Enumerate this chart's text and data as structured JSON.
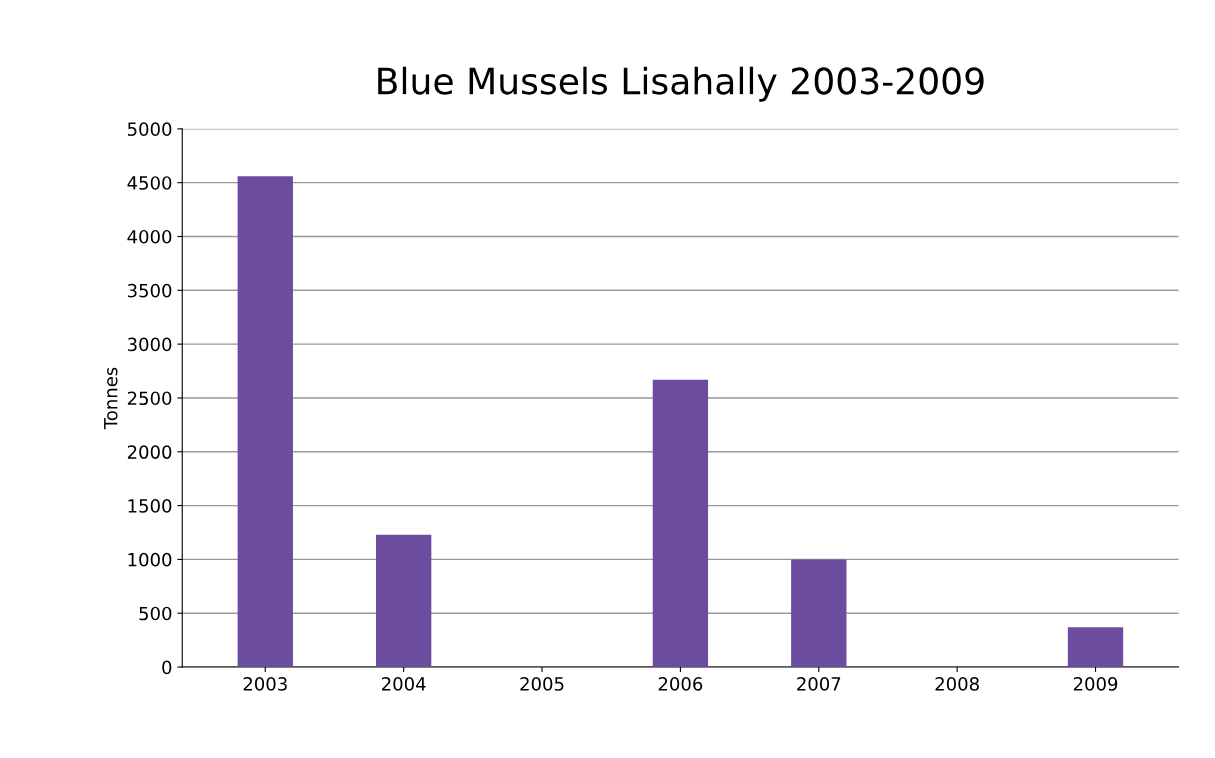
{
  "chart_data": {
    "type": "bar",
    "title": "Blue Mussels Lisahally 2003-2009",
    "ylabel": "Tonnes",
    "categories": [
      "2003",
      "2004",
      "2005",
      "2006",
      "2007",
      "2008",
      "2009"
    ],
    "values": [
      4560,
      1230,
      0,
      2670,
      1000,
      0,
      370
    ],
    "color": "#6b4c9e",
    "ylim": [
      0,
      5000
    ],
    "yticks": [
      0,
      500,
      1000,
      1500,
      2000,
      2500,
      3000,
      3500,
      4000,
      4500,
      5000
    ],
    "grid": "y"
  }
}
